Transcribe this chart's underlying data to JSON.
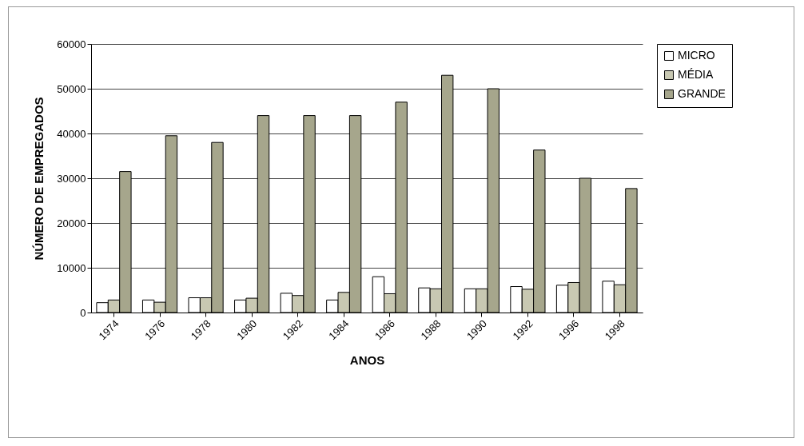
{
  "chart_data": {
    "type": "bar",
    "xlabel": "ANOS",
    "ylabel": "NÚMERO DE EMPREGADOS",
    "categories": [
      "1974",
      "1976",
      "1978",
      "1980",
      "1982",
      "1984",
      "1986",
      "1988",
      "1990",
      "1992",
      "1996",
      "1998"
    ],
    "series": [
      {
        "name": "MICRO",
        "color": "#ffffff",
        "values": [
          2200,
          2800,
          3300,
          2800,
          4300,
          2800,
          8000,
          5500,
          5300,
          5800,
          6100,
          7000
        ]
      },
      {
        "name": "MÉDIA",
        "color": "#c8c8b2",
        "values": [
          2800,
          2300,
          3300,
          3200,
          3800,
          4500,
          4200,
          5300,
          5300,
          5200,
          6700,
          6200
        ]
      },
      {
        "name": "GRANDE",
        "color": "#a6a68c",
        "values": [
          31500,
          39500,
          38000,
          44000,
          44000,
          44000,
          47000,
          53000,
          50000,
          36300,
          30000,
          27700
        ]
      }
    ],
    "ylim": [
      0,
      60000
    ],
    "yticks": [
      0,
      10000,
      20000,
      30000,
      40000,
      50000,
      60000
    ],
    "grid": "y",
    "legend": "right"
  }
}
